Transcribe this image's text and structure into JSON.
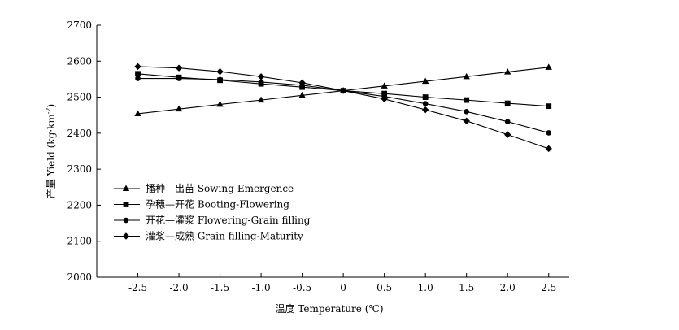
{
  "chart_data": {
    "type": "line",
    "xlabel": "温度 Temperature (℃)",
    "ylabel_main": "产量 Yield (kg·km",
    "ylabel_sup": "-2",
    "ylabel_end": ")",
    "x": [
      -2.5,
      -2.0,
      -1.5,
      -1.0,
      -0.5,
      0,
      0.5,
      1.0,
      1.5,
      2.0,
      2.5
    ],
    "x_tick_labels": [
      "-2.5",
      "-2.0",
      "-1.5",
      "-1.0",
      "-0.5",
      "0",
      "0.5",
      "1.0",
      "1.5",
      "2.0",
      "2.5"
    ],
    "y_ticks": [
      2000,
      2100,
      2200,
      2300,
      2400,
      2500,
      2600,
      2700
    ],
    "ylim": [
      2000,
      2700
    ],
    "xlim": [
      -3.0,
      2.75
    ],
    "grid": false,
    "legend_position": "lower-left",
    "series": [
      {
        "name": "播种—出苗 Sowing-Emergence",
        "marker": "triangle",
        "values": [
          2454,
          2467,
          2480,
          2492,
          2505,
          2518,
          2531,
          2544,
          2557,
          2570,
          2583
        ]
      },
      {
        "name": "孕穗—开花 Booting-Flowering",
        "marker": "square",
        "values": [
          2565,
          2555,
          2547,
          2537,
          2528,
          2518,
          2510,
          2500,
          2492,
          2483,
          2475
        ]
      },
      {
        "name": "开花—灌浆 Flowering-Grain filling",
        "marker": "circle",
        "values": [
          2552,
          2552,
          2549,
          2542,
          2533,
          2518,
          2502,
          2482,
          2460,
          2432,
          2401
        ]
      },
      {
        "name": "灌浆—成熟 Grain filling-Maturity",
        "marker": "diamond",
        "values": [
          2585,
          2581,
          2571,
          2557,
          2540,
          2518,
          2495,
          2465,
          2434,
          2396,
          2357
        ]
      }
    ]
  }
}
